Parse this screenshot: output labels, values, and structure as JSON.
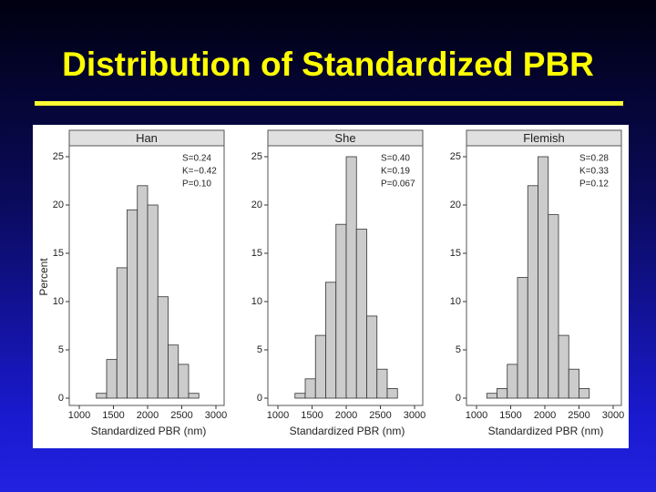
{
  "title": "Distribution of Standardized PBR",
  "chart_data": [
    {
      "type": "histogram",
      "title": "Han",
      "xlabel": "Standardized PBR (nm)",
      "ylabel": "Percent",
      "bins": [
        1250,
        1400,
        1550,
        1700,
        1850,
        2000,
        2150,
        2300,
        2450,
        2600,
        2750
      ],
      "counts": [
        0.5,
        4,
        13.5,
        19.5,
        22,
        20,
        10.5,
        5.5,
        3.5,
        0.5
      ],
      "color": "#cccccc",
      "xlim": [
        1000,
        3000
      ],
      "xticks": [
        1000,
        1500,
        2000,
        2500,
        3000
      ],
      "ylim": [
        0,
        25
      ],
      "yticks": [
        0,
        5,
        10,
        15,
        20,
        25
      ],
      "annotations": [
        "S=0.24",
        "K=−0.42",
        "P=0.10"
      ]
    },
    {
      "type": "histogram",
      "title": "She",
      "xlabel": "Standardized PBR (nm)",
      "bins": [
        1250,
        1400,
        1550,
        1700,
        1850,
        2000,
        2150,
        2300,
        2450,
        2600,
        2750
      ],
      "counts": [
        0.5,
        2,
        6.5,
        12,
        18,
        25,
        17.5,
        8.5,
        3,
        1
      ],
      "color": "#cccccc",
      "xlim": [
        1000,
        3000
      ],
      "xticks": [
        1000,
        1500,
        2000,
        2500,
        3000
      ],
      "ylim": [
        0,
        25
      ],
      "yticks": [
        0,
        5,
        10,
        15,
        20,
        25
      ],
      "annotations": [
        "S=0.40",
        "K=0.19",
        "P=0.067"
      ]
    },
    {
      "type": "histogram",
      "title": "Flemish",
      "xlabel": "Standardized PBR (nm)",
      "bins": [
        1150,
        1300,
        1450,
        1600,
        1750,
        1900,
        2050,
        2200,
        2350,
        2500,
        2650
      ],
      "counts": [
        0.5,
        1,
        3.5,
        12.5,
        22,
        25,
        19,
        6.5,
        3,
        1
      ],
      "color": "#cccccc",
      "xlim": [
        1000,
        3000
      ],
      "xticks": [
        1000,
        1500,
        2000,
        2500,
        3000
      ],
      "ylim": [
        0,
        25
      ],
      "yticks": [
        0,
        5,
        10,
        15,
        20,
        25
      ],
      "annotations": [
        "S=0.28",
        "K=0.33",
        "P=0.12"
      ]
    }
  ]
}
